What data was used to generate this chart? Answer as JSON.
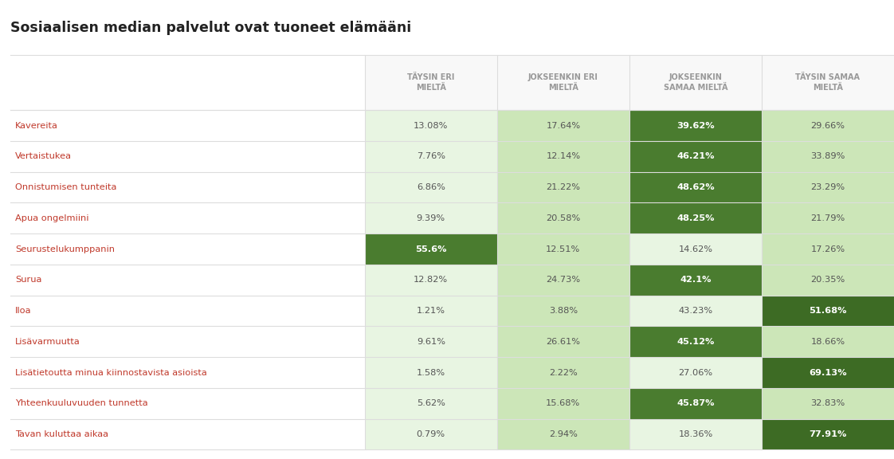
{
  "title": "Sosiaalisen median palvelut ovat tuoneet elämääni",
  "col_headers": [
    "TÄYSIN ERI\nMIELTÄ",
    "JOKSEENKIN ERI\nMIELTÄ",
    "JOKSEENKIN\nSAMAA MIELTÄ",
    "TÄYSIN SAMAA\nMIELTÄ"
  ],
  "rows": [
    {
      "label": "Kavereita",
      "vals": [
        13.08,
        17.64,
        39.62,
        29.66
      ],
      "bold": [
        false,
        false,
        true,
        false
      ]
    },
    {
      "label": "Vertaistukea",
      "vals": [
        7.76,
        12.14,
        46.21,
        33.89
      ],
      "bold": [
        false,
        false,
        true,
        false
      ]
    },
    {
      "label": "Onnistumisen tunteita",
      "vals": [
        6.86,
        21.22,
        48.62,
        23.29
      ],
      "bold": [
        false,
        false,
        true,
        false
      ]
    },
    {
      "label": "Apua ongelmiini",
      "vals": [
        9.39,
        20.58,
        48.25,
        21.79
      ],
      "bold": [
        false,
        false,
        true,
        false
      ]
    },
    {
      "label": "Seurustelukumppanin",
      "vals": [
        55.6,
        12.51,
        14.62,
        17.26
      ],
      "bold": [
        true,
        false,
        false,
        false
      ]
    },
    {
      "label": "Surua",
      "vals": [
        12.82,
        24.73,
        42.1,
        20.35
      ],
      "bold": [
        false,
        false,
        true,
        false
      ]
    },
    {
      "label": "Iloa",
      "vals": [
        1.21,
        3.88,
        43.23,
        51.68
      ],
      "bold": [
        false,
        false,
        false,
        true
      ]
    },
    {
      "label": "Lisävarmuutta",
      "vals": [
        9.61,
        26.61,
        45.12,
        18.66
      ],
      "bold": [
        false,
        false,
        true,
        false
      ]
    },
    {
      "label": "Lisätietoutta minua kiinnostavista asioista",
      "vals": [
        1.58,
        2.22,
        27.06,
        69.13
      ],
      "bold": [
        false,
        false,
        false,
        true
      ]
    },
    {
      "label": "Yhteenkuuluvuuden tunnetta",
      "vals": [
        5.62,
        15.68,
        45.87,
        32.83
      ],
      "bold": [
        false,
        false,
        true,
        false
      ]
    },
    {
      "label": "Tavan kuluttaa aikaa",
      "vals": [
        0.79,
        2.94,
        18.36,
        77.91
      ],
      "bold": [
        false,
        false,
        false,
        true
      ]
    }
  ],
  "cell_bg_normal": [
    "#e8f5e2",
    "#cce6b8",
    "#e8f5e2",
    "#cce6b8"
  ],
  "cell_bg_bold": [
    "#4a7c2f",
    "#4a7c2f",
    "#4a7c2f",
    "#3d6b24"
  ],
  "label_color": "#c0392b",
  "header_text_color": "#999999",
  "value_text_normal": "#555555",
  "value_text_bold": "#ffffff",
  "border_color": "#dddddd",
  "header_bg": "#f8f8f8",
  "background": "#ffffff",
  "title_color": "#222222"
}
